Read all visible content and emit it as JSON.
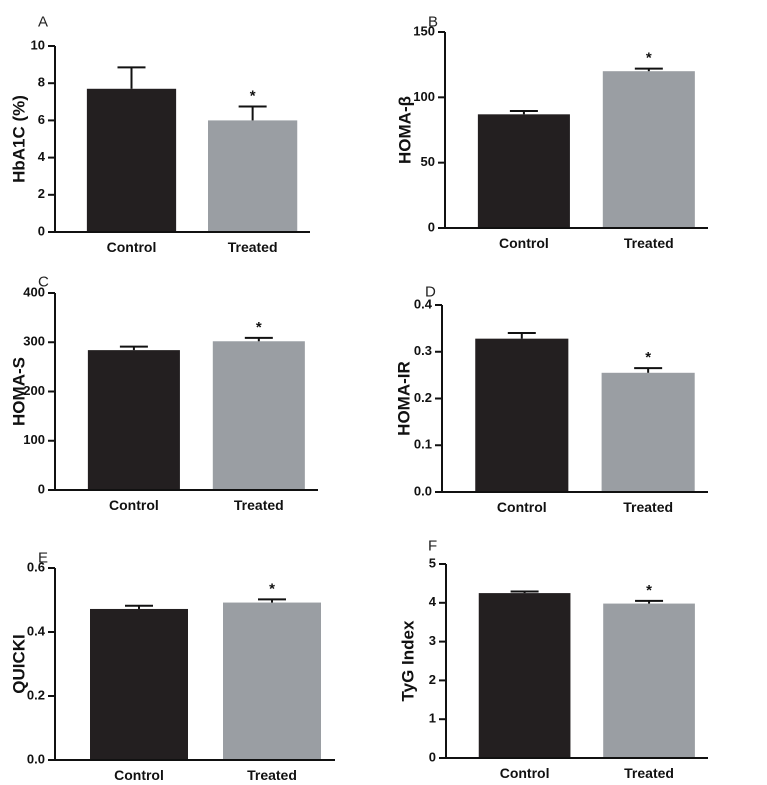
{
  "chart_data": [
    {
      "panel": "A",
      "type": "bar",
      "categories": [
        "Control",
        "Treated"
      ],
      "values": [
        7.7,
        6.0
      ],
      "errors": [
        1.15,
        0.75
      ],
      "significance": [
        "",
        "*"
      ],
      "ylabel": "HbA1C (%)",
      "ylim": [
        0,
        10
      ],
      "yticks": [
        "0",
        "2",
        "4",
        "6",
        "8",
        "10"
      ],
      "colors": [
        "#231f20",
        "#9a9ea3"
      ]
    },
    {
      "panel": "B",
      "type": "bar",
      "categories": [
        "Control",
        "Treated"
      ],
      "values": [
        87,
        120
      ],
      "errors": [
        2.5,
        2
      ],
      "significance": [
        "",
        "*"
      ],
      "ylabel": "HOMA-β",
      "ylim": [
        0,
        150
      ],
      "yticks": [
        "0",
        "50",
        "100",
        "150"
      ],
      "colors": [
        "#231f20",
        "#9a9ea3"
      ]
    },
    {
      "panel": "C",
      "type": "bar",
      "categories": [
        "Control",
        "Treated"
      ],
      "values": [
        284,
        302
      ],
      "errors": [
        7,
        7
      ],
      "significance": [
        "",
        "*"
      ],
      "ylabel": "HOMA-S",
      "ylim": [
        0,
        400
      ],
      "yticks": [
        "0",
        "100",
        "200",
        "300",
        "400"
      ],
      "colors": [
        "#231f20",
        "#9a9ea3"
      ]
    },
    {
      "panel": "D",
      "type": "bar",
      "categories": [
        "Control",
        "Treated"
      ],
      "values": [
        0.328,
        0.255
      ],
      "errors": [
        0.012,
        0.01
      ],
      "significance": [
        "",
        "*"
      ],
      "ylabel": "HOMA-IR",
      "ylim": [
        0,
        0.4
      ],
      "yticks": [
        "0.0",
        "0.1",
        "0.2",
        "0.3",
        "0.4"
      ],
      "colors": [
        "#231f20",
        "#9a9ea3"
      ]
    },
    {
      "panel": "E",
      "type": "bar",
      "categories": [
        "Control",
        "Treated"
      ],
      "values": [
        0.472,
        0.492
      ],
      "errors": [
        0.01,
        0.01
      ],
      "significance": [
        "",
        "*"
      ],
      "ylabel": "QUICKI",
      "ylim": [
        0,
        0.6
      ],
      "yticks": [
        "0.0",
        "0.2",
        "0.4",
        "0.6"
      ],
      "colors": [
        "#231f20",
        "#9a9ea3"
      ]
    },
    {
      "panel": "F",
      "type": "bar",
      "categories": [
        "Control",
        "Treated"
      ],
      "values": [
        4.25,
        3.98
      ],
      "errors": [
        0.04,
        0.07
      ],
      "significance": [
        "",
        "*"
      ],
      "ylabel": "TyG Index",
      "ylim": [
        0,
        5
      ],
      "yticks": [
        "0",
        "1",
        "2",
        "3",
        "4",
        "5"
      ],
      "colors": [
        "#231f20",
        "#9a9ea3"
      ]
    }
  ]
}
